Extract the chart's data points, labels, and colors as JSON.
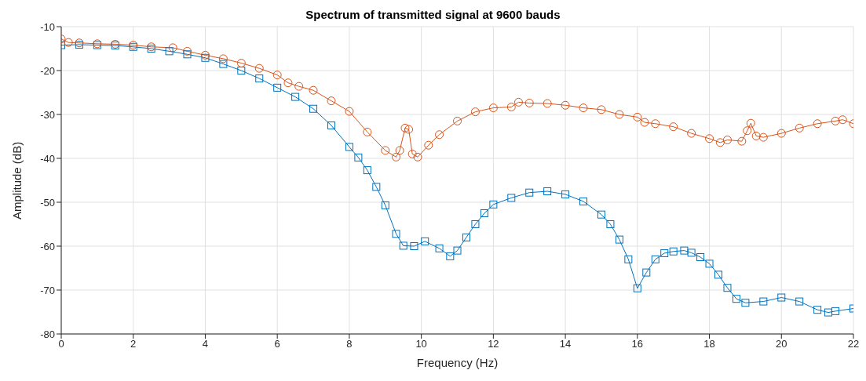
{
  "chart_data": {
    "type": "line",
    "title": "Spectrum of transmitted signal at 9600 bauds",
    "xlabel": "Frequency (Hz)",
    "ylabel": "Amplitude (dB)",
    "xlim": [
      0,
      22
    ],
    "xticks": [
      0,
      2,
      4,
      6,
      8,
      10,
      12,
      14,
      16,
      18,
      20,
      22
    ],
    "ylim": [
      -80,
      -10
    ],
    "yticks": [
      -80,
      -70,
      -60,
      -50,
      -40,
      -30,
      -20,
      -10
    ],
    "grid": true,
    "line_style": "solid",
    "series": [
      {
        "color": "#0072bd",
        "marker": "square",
        "x": [
          0,
          0.5,
          1,
          1.5,
          2,
          2.5,
          3,
          3.5,
          4,
          4.5,
          5,
          5.5,
          6,
          6.5,
          7,
          7.5,
          8,
          8.25,
          8.5,
          8.75,
          9,
          9.3,
          9.5,
          9.8,
          10.1,
          10.5,
          10.8,
          11,
          11.25,
          11.5,
          11.75,
          12,
          12.5,
          13,
          13.5,
          14,
          14.5,
          15,
          15.25,
          15.5,
          15.75,
          16,
          16.25,
          16.5,
          16.75,
          17,
          17.3,
          17.5,
          17.75,
          18,
          18.25,
          18.5,
          18.75,
          19,
          19.5,
          20,
          20.5,
          21,
          21.3,
          21.5,
          22
        ],
        "values": [
          -14.2,
          -14.1,
          -14.2,
          -14.3,
          -14.6,
          -15,
          -15.6,
          -16.3,
          -17.1,
          -18.5,
          -20,
          -21.8,
          -23.9,
          -26,
          -28.7,
          -32.5,
          -37.4,
          -39.8,
          -42.7,
          -46.5,
          -50.7,
          -57.2,
          -59.9,
          -60,
          -58.9,
          -60.5,
          -62.3,
          -61,
          -58,
          -55,
          -52.5,
          -50.5,
          -49,
          -47.8,
          -47.5,
          -48.2,
          -49.8,
          -52.8,
          -55,
          -58.5,
          -63,
          -69.6,
          -66,
          -63,
          -61.6,
          -61.2,
          -61,
          -61.5,
          -62.5,
          -64,
          -66.5,
          -69.5,
          -72,
          -72.9,
          -72.6,
          -71.7,
          -72.6,
          -74.5,
          -75.1,
          -74.8,
          -74.2
        ]
      },
      {
        "color": "#d95319",
        "marker": "circle",
        "x": [
          0,
          0.2,
          0.5,
          1,
          1.5,
          2,
          2.5,
          3.1,
          3.5,
          4,
          4.5,
          5,
          5.5,
          6,
          6.3,
          6.6,
          7,
          7.5,
          8,
          8.5,
          9,
          9.3,
          9.4,
          9.55,
          9.65,
          9.75,
          9.9,
          10.2,
          10.5,
          11,
          11.5,
          12,
          12.5,
          12.7,
          13,
          13.5,
          14,
          14.5,
          15,
          15.5,
          16,
          16.2,
          16.5,
          17,
          17.5,
          18,
          18.3,
          18.5,
          18.9,
          19.05,
          19.15,
          19.3,
          19.5,
          20,
          20.5,
          21,
          21.5,
          21.7,
          22
        ],
        "values": [
          -12.8,
          -13.6,
          -13.7,
          -13.9,
          -14,
          -14.2,
          -14.6,
          -14.8,
          -15.6,
          -16.5,
          -17.3,
          -18.3,
          -19.5,
          -21,
          -22.8,
          -23.6,
          -24.5,
          -26.9,
          -29.3,
          -34,
          -38.2,
          -39.7,
          -38.2,
          -33.1,
          -33.4,
          -39,
          -39.7,
          -37,
          -34.6,
          -31.5,
          -29.4,
          -28.5,
          -28.3,
          -27.2,
          -27.4,
          -27.5,
          -27.9,
          -28.5,
          -28.9,
          -30,
          -30.6,
          -31.8,
          -32.1,
          -32.8,
          -34.3,
          -35.5,
          -36.4,
          -35.8,
          -36.1,
          -33.7,
          -32,
          -34.9,
          -35.2,
          -34.3,
          -33.1,
          -32.1,
          -31.5,
          -31.2,
          -32.1
        ]
      }
    ]
  }
}
